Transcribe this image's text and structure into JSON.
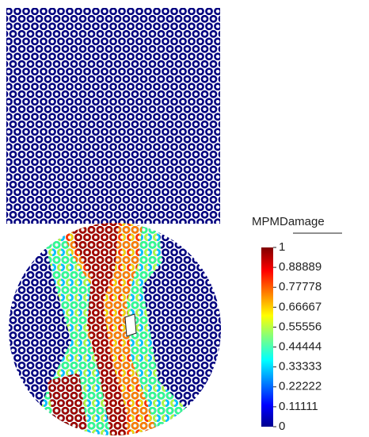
{
  "colorbar": {
    "title": "MPMDamage",
    "range": [
      0,
      1
    ],
    "ticks": [
      1,
      0.88889,
      0.77778,
      0.66667,
      0.55556,
      0.44444,
      0.33333,
      0.22222,
      0.11111,
      0
    ]
  }
}
